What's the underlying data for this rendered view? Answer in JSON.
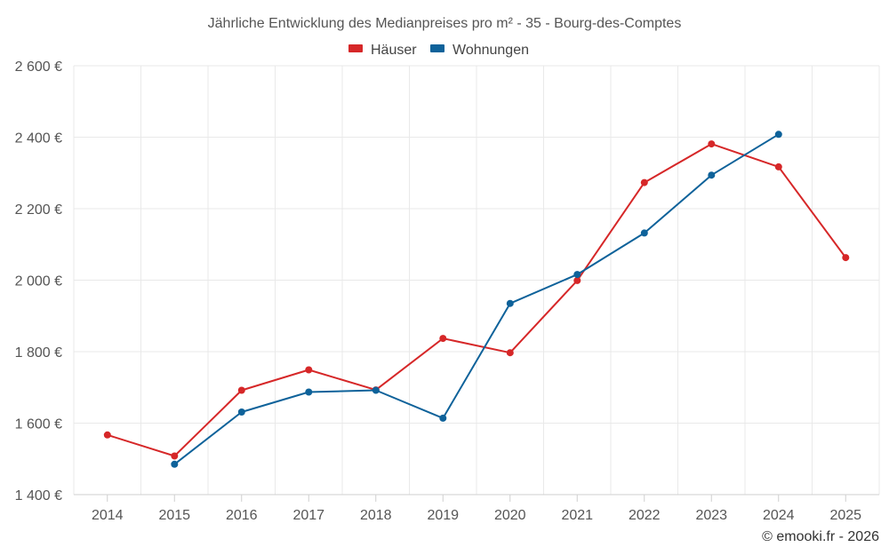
{
  "chart_data": {
    "type": "line",
    "title": "Jährliche Entwicklung des Medianpreises pro m² - 35 - Bourg-des-Comptes",
    "categories": [
      "2014",
      "2015",
      "2016",
      "2017",
      "2018",
      "2019",
      "2020",
      "2021",
      "2022",
      "2023",
      "2024",
      "2025"
    ],
    "ylim": [
      1400,
      2600
    ],
    "yticks": [
      1400,
      1600,
      1800,
      2000,
      2200,
      2400,
      2600
    ],
    "ytick_labels": [
      "1 400 €",
      "1 600 €",
      "1 800 €",
      "2 000 €",
      "2 200 €",
      "2 400 €",
      "2 600 €"
    ],
    "grid": true,
    "legend_position": "top-center",
    "series": [
      {
        "name": "Häuser",
        "color": "#d62728",
        "values": [
          1567,
          1508,
          1692,
          1749,
          1693,
          1837,
          1797,
          1999,
          2273,
          2381,
          2317,
          2063
        ]
      },
      {
        "name": "Wohnungen",
        "color": "#0e629a",
        "values": [
          null,
          1485,
          1631,
          1687,
          1692,
          1614,
          1935,
          2016,
          2132,
          2294,
          2408,
          null
        ]
      }
    ],
    "credit": "© emooki.fr - 2026"
  }
}
